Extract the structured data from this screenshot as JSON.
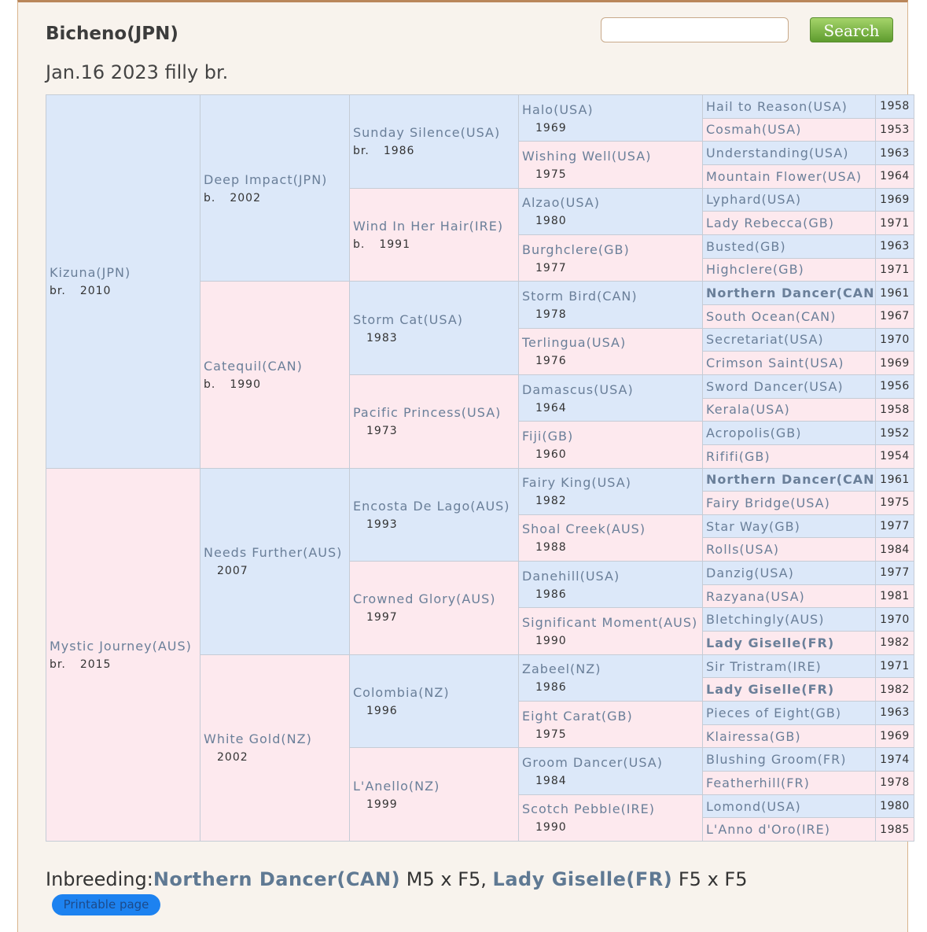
{
  "header": {
    "title": "Bicheno(JPN)",
    "subtitle": "Jan.16 2023 filly br.",
    "search_button": "Search"
  },
  "pedigree": {
    "generations": [
      [
        {
          "name": "Kizuna(JPN)",
          "coat": "br.",
          "year": "2010"
        },
        {
          "name": "Mystic Journey(AUS)",
          "coat": "br.",
          "year": "2015"
        }
      ],
      [
        {
          "name": "Deep Impact(JPN)",
          "coat": "b.",
          "year": "2002"
        },
        {
          "name": "Catequil(CAN)",
          "coat": "b.",
          "year": "1990"
        },
        {
          "name": "Needs Further(AUS)",
          "year": "2007"
        },
        {
          "name": "White Gold(NZ)",
          "year": "2002"
        }
      ],
      [
        {
          "name": "Sunday Silence(USA)",
          "coat": "br.",
          "year": "1986"
        },
        {
          "name": "Wind In Her Hair(IRE)",
          "coat": "b.",
          "year": "1991"
        },
        {
          "name": "Storm Cat(USA)",
          "year": "1983"
        },
        {
          "name": "Pacific Princess(USA)",
          "year": "1973"
        },
        {
          "name": "Encosta De Lago(AUS)",
          "year": "1993"
        },
        {
          "name": "Crowned Glory(AUS)",
          "year": "1997"
        },
        {
          "name": "Colombia(NZ)",
          "year": "1996"
        },
        {
          "name": "L'Anello(NZ)",
          "year": "1999"
        }
      ],
      [
        {
          "name": "Halo(USA)",
          "year": "1969"
        },
        {
          "name": "Wishing Well(USA)",
          "year": "1975"
        },
        {
          "name": "Alzao(USA)",
          "year": "1980"
        },
        {
          "name": "Burghclere(GB)",
          "year": "1977"
        },
        {
          "name": "Storm Bird(CAN)",
          "year": "1978"
        },
        {
          "name": "Terlingua(USA)",
          "year": "1976"
        },
        {
          "name": "Damascus(USA)",
          "year": "1964"
        },
        {
          "name": "Fiji(GB)",
          "year": "1960"
        },
        {
          "name": "Fairy King(USA)",
          "year": "1982"
        },
        {
          "name": "Shoal Creek(AUS)",
          "year": "1988"
        },
        {
          "name": "Danehill(USA)",
          "year": "1986"
        },
        {
          "name": "Significant Moment(AUS)",
          "year": "1990"
        },
        {
          "name": "Zabeel(NZ)",
          "year": "1986"
        },
        {
          "name": "Eight Carat(GB)",
          "year": "1975"
        },
        {
          "name": "Groom Dancer(USA)",
          "year": "1984"
        },
        {
          "name": "Scotch Pebble(IRE)",
          "year": "1990"
        }
      ],
      [
        {
          "name": "Hail to Reason(USA)",
          "year": "1958"
        },
        {
          "name": "Cosmah(USA)",
          "year": "1953"
        },
        {
          "name": "Understanding(USA)",
          "year": "1963"
        },
        {
          "name": "Mountain Flower(USA)",
          "year": "1964"
        },
        {
          "name": "Lyphard(USA)",
          "year": "1969"
        },
        {
          "name": "Lady Rebecca(GB)",
          "year": "1971"
        },
        {
          "name": "Busted(GB)",
          "year": "1963"
        },
        {
          "name": "Highclere(GB)",
          "year": "1971"
        },
        {
          "name": "Northern Dancer(CAN)",
          "year": "1961",
          "inbred": true
        },
        {
          "name": "South Ocean(CAN)",
          "year": "1967"
        },
        {
          "name": "Secretariat(USA)",
          "year": "1970"
        },
        {
          "name": "Crimson Saint(USA)",
          "year": "1969"
        },
        {
          "name": "Sword Dancer(USA)",
          "year": "1956"
        },
        {
          "name": "Kerala(USA)",
          "year": "1958"
        },
        {
          "name": "Acropolis(GB)",
          "year": "1952"
        },
        {
          "name": "Rififi(GB)",
          "year": "1954"
        },
        {
          "name": "Northern Dancer(CAN)",
          "year": "1961",
          "inbred": true
        },
        {
          "name": "Fairy Bridge(USA)",
          "year": "1975"
        },
        {
          "name": "Star Way(GB)",
          "year": "1977"
        },
        {
          "name": "Rolls(USA)",
          "year": "1984"
        },
        {
          "name": "Danzig(USA)",
          "year": "1977"
        },
        {
          "name": "Razyana(USA)",
          "year": "1981"
        },
        {
          "name": "Bletchingly(AUS)",
          "year": "1970"
        },
        {
          "name": "Lady Giselle(FR)",
          "year": "1982",
          "inbred": true
        },
        {
          "name": "Sir Tristram(IRE)",
          "year": "1971"
        },
        {
          "name": "Lady Giselle(FR)",
          "year": "1982",
          "inbred": true
        },
        {
          "name": "Pieces of Eight(GB)",
          "year": "1963"
        },
        {
          "name": "Klairessa(GB)",
          "year": "1969"
        },
        {
          "name": "Blushing Groom(FR)",
          "year": "1974"
        },
        {
          "name": "Featherhill(FR)",
          "year": "1978"
        },
        {
          "name": "Lomond(USA)",
          "year": "1980"
        },
        {
          "name": "L'Anno d'Oro(IRE)",
          "year": "1985"
        }
      ]
    ]
  },
  "inbreeding": {
    "label": "Inbreeding:",
    "entries": [
      {
        "name": "Northern Dancer(CAN)",
        "cross": "M5 x F5,"
      },
      {
        "name": "Lady Giselle(FR)",
        "cross": "F5 x F5"
      }
    ]
  },
  "footer": {
    "printable_button": "Printable page"
  }
}
